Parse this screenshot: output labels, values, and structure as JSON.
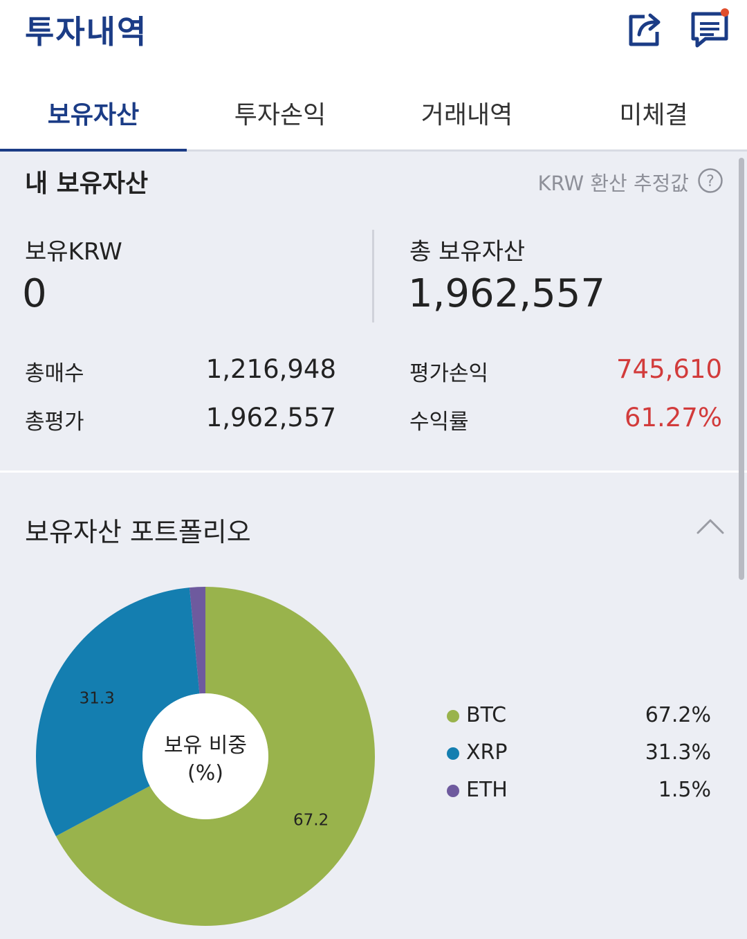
{
  "header": {
    "title": "투자내역",
    "icons": [
      "share-icon",
      "message-icon"
    ],
    "accent": "#1b3c86"
  },
  "tabs": [
    {
      "label": "보유자산",
      "active": true
    },
    {
      "label": "투자손익",
      "active": false
    },
    {
      "label": "거래내역",
      "active": false
    },
    {
      "label": "미체결",
      "active": false
    }
  ],
  "assets": {
    "title": "내 보유자산",
    "note": "KRW 환산 추정값",
    "krw_label": "보유KRW",
    "krw_value": "0",
    "total_label": "총 보유자산",
    "total_value": "1,962,557",
    "rows": {
      "buy_label": "총매수",
      "buy_value": "1,216,948",
      "eval_label": "총평가",
      "eval_value": "1,962,557",
      "pnl_label": "평가손익",
      "pnl_value": "745,610",
      "rate_label": "수익률",
      "rate_value": "61.27%"
    },
    "gain_color": "#d23b3b"
  },
  "portfolio": {
    "title": "보유자산 포트폴리오",
    "center_line1": "보유 비중",
    "center_line2": "(%)",
    "legend": [
      {
        "name": "BTC",
        "value": "67.2%",
        "color": "#99b34c"
      },
      {
        "name": "XRP",
        "value": "31.3%",
        "color": "#147eb0"
      },
      {
        "name": "ETH",
        "value": "1.5%",
        "color": "#6e5a9e"
      }
    ]
  },
  "chart_data": {
    "type": "pie",
    "categories": [
      "BTC",
      "XRP",
      "ETH"
    ],
    "values": [
      67.2,
      31.3,
      1.5
    ],
    "slice_labels": [
      "67.2",
      "31.3",
      ""
    ],
    "colors": [
      "#99b34c",
      "#147eb0",
      "#6e5a9e"
    ],
    "donut": true,
    "legend": "right"
  }
}
